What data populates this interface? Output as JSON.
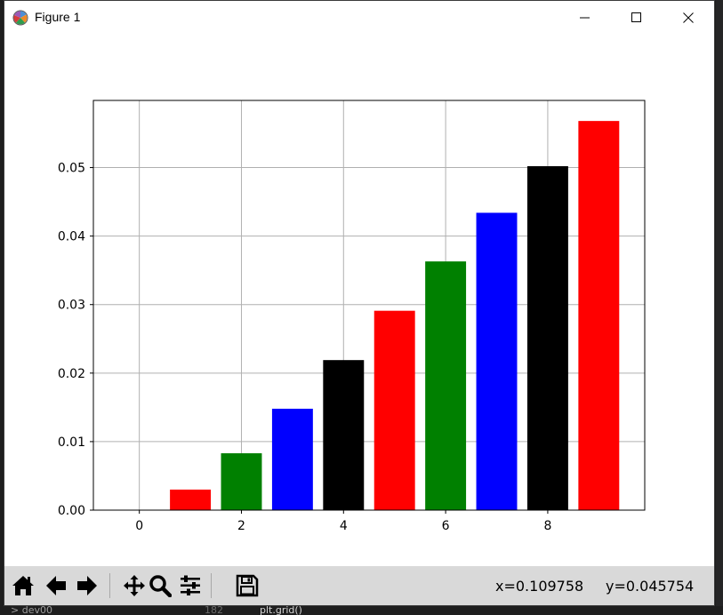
{
  "window": {
    "title": "Figure 1",
    "icons": [
      "matplotlib-logo-icon",
      "minimize-icon",
      "maximize-icon",
      "close-icon"
    ]
  },
  "toolbar": {
    "icons": [
      "home-icon",
      "back-arrow-icon",
      "forward-arrow-icon",
      "pan-icon",
      "zoom-icon",
      "configure-subplots-icon",
      "save-icon"
    ],
    "x_readout": "x=0.109758",
    "y_readout": "y=0.045754"
  },
  "editor_backdrop": {
    "explorer_item": "> dev00",
    "line_number": "182",
    "code": "plt.grid()"
  },
  "chart_data": {
    "type": "bar",
    "x": [
      1,
      2,
      3,
      4,
      5,
      6,
      7,
      8,
      9
    ],
    "values": [
      0.003,
      0.0083,
      0.0148,
      0.0219,
      0.0291,
      0.0363,
      0.0434,
      0.0502,
      0.0568
    ],
    "colors": [
      "#ff0000",
      "#008000",
      "#0000ff",
      "#000000",
      "#ff0000",
      "#008000",
      "#0000ff",
      "#000000",
      "#ff0000"
    ],
    "bar_width": 0.8,
    "xlim": [
      -0.9,
      9.9
    ],
    "ylim": [
      0,
      0.0598
    ],
    "xticks": [
      0,
      2,
      4,
      6,
      8
    ],
    "xtick_labels": [
      "0",
      "2",
      "4",
      "6",
      "8"
    ],
    "yticks": [
      0.0,
      0.01,
      0.02,
      0.03,
      0.04,
      0.05
    ],
    "ytick_labels": [
      "0.00",
      "0.01",
      "0.02",
      "0.03",
      "0.04",
      "0.05"
    ],
    "grid": true,
    "title": "",
    "xlabel": "",
    "ylabel": ""
  }
}
